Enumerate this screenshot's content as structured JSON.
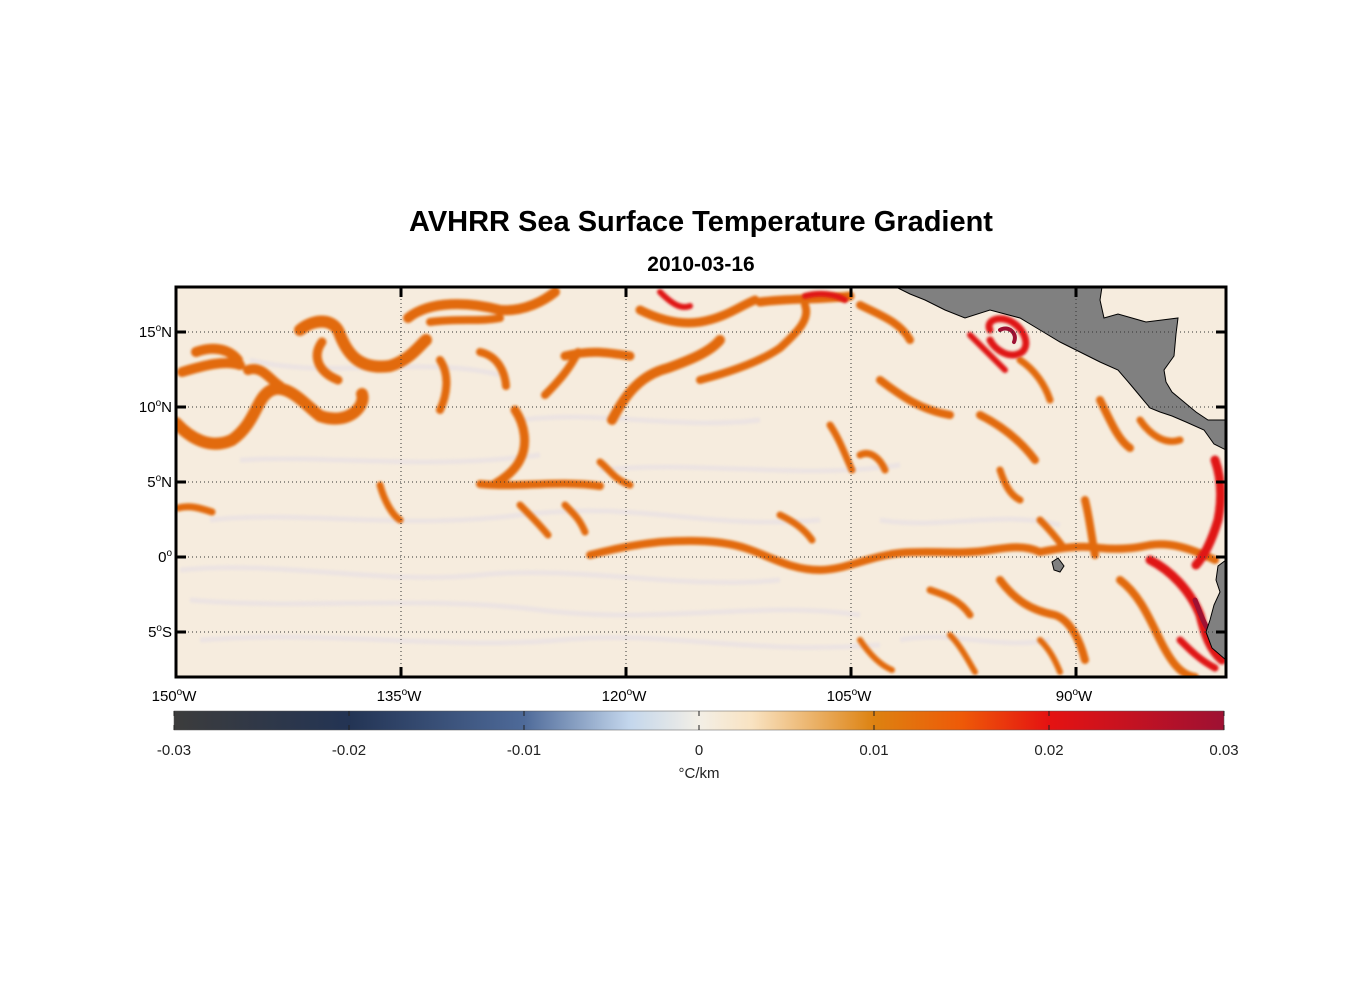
{
  "title": "AVHRR Sea Surface Temperature Gradient",
  "subtitle": "2010-03-16",
  "chart_data": {
    "type": "heatmap",
    "title": "AVHRR Sea Surface Temperature Gradient",
    "subtitle": "2010-03-16",
    "lon_range": [
      -150,
      -80
    ],
    "lat_range": [
      -8,
      18
    ],
    "grid": true,
    "lon_ticks": [
      {
        "value": -150,
        "deg": "150",
        "hem": "W"
      },
      {
        "value": -135,
        "deg": "135",
        "hem": "W"
      },
      {
        "value": -120,
        "deg": "120",
        "hem": "W"
      },
      {
        "value": -105,
        "deg": "105",
        "hem": "W"
      },
      {
        "value": -90,
        "deg": "90",
        "hem": "W"
      }
    ],
    "lat_ticks": [
      {
        "value": 15,
        "deg": "15",
        "hem": "N"
      },
      {
        "value": 10,
        "deg": "10",
        "hem": "N"
      },
      {
        "value": 5,
        "deg": "5",
        "hem": "N"
      },
      {
        "value": 0,
        "deg": "0",
        "hem": ""
      },
      {
        "value": -5,
        "deg": "5",
        "hem": "S"
      }
    ],
    "colorbar": {
      "min": -0.03,
      "max": 0.03,
      "ticks": [
        {
          "value": -0.03,
          "label": "-0.03"
        },
        {
          "value": -0.02,
          "label": "-0.02"
        },
        {
          "value": -0.01,
          "label": "-0.01"
        },
        {
          "value": 0,
          "label": "0"
        },
        {
          "value": 0.01,
          "label": "0.01"
        },
        {
          "value": 0.02,
          "label": "0.02"
        },
        {
          "value": 0.03,
          "label": "0.03"
        }
      ],
      "label": "°C/km",
      "stops": [
        {
          "value": -0.03,
          "color": "#3c3c3c"
        },
        {
          "value": -0.02,
          "color": "#233454"
        },
        {
          "value": -0.01,
          "color": "#4e6a99"
        },
        {
          "value": -0.004,
          "color": "#c3d6ec"
        },
        {
          "value": 0,
          "color": "#f3efe6"
        },
        {
          "value": 0.003,
          "color": "#f9e3c2"
        },
        {
          "value": 0.01,
          "color": "#dd8211"
        },
        {
          "value": 0.015,
          "color": "#ee5a08"
        },
        {
          "value": 0.02,
          "color": "#e51212"
        },
        {
          "value": 0.03,
          "color": "#9e1133"
        }
      ]
    },
    "colors": {
      "background_ocean": "#f6ecde",
      "land": "#808080",
      "front_medium": "#e26a0e",
      "front_strong": "#e01818"
    }
  }
}
